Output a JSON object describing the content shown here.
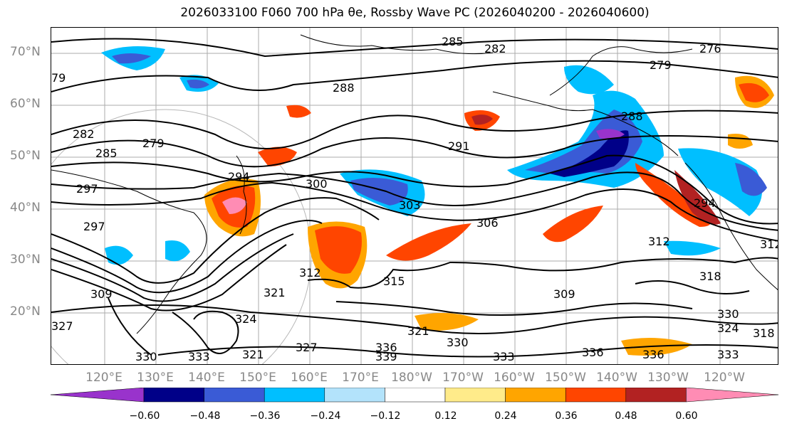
{
  "title": "2026033100 F060 700 hPa θe, Rossby Wave PC (2026040200 - 2026040600)",
  "lat_labels": [
    "70°N",
    "60°N",
    "50°N",
    "40°N",
    "30°N",
    "20°N"
  ],
  "lon_labels": [
    "120°E",
    "130°E",
    "140°E",
    "150°E",
    "160°E",
    "170°E",
    "180°W",
    "170°W",
    "160°W",
    "150°W",
    "140°W",
    "130°W",
    "120°W"
  ],
  "contour_labels": [
    "285",
    "282",
    "276",
    "279",
    "79",
    "288",
    "282",
    "285",
    "279",
    "288",
    "291",
    "294",
    "297",
    "300",
    "303",
    "306",
    "312",
    "294",
    "312",
    "315",
    "321",
    "312",
    "309",
    "318",
    "330",
    "324",
    "318",
    "321",
    "333",
    "336",
    "339",
    "330",
    "336",
    "336",
    "333",
    "324",
    "321",
    "327",
    "333",
    "330",
    "327",
    "297",
    "309"
  ],
  "colorbar": {
    "ticks": [
      "−0.60",
      "−0.48",
      "−0.36",
      "−0.24",
      "−0.12",
      "0.12",
      "0.24",
      "0.36",
      "0.48",
      "0.60"
    ],
    "colors": [
      "#9933cc",
      "#000088",
      "#3a5bd6",
      "#00bfff",
      "#b3e3fb",
      "#ffffff",
      "#ffeb8a",
      "#ffa500",
      "#ff4500",
      "#b22222",
      "#ff8cb4"
    ]
  }
}
